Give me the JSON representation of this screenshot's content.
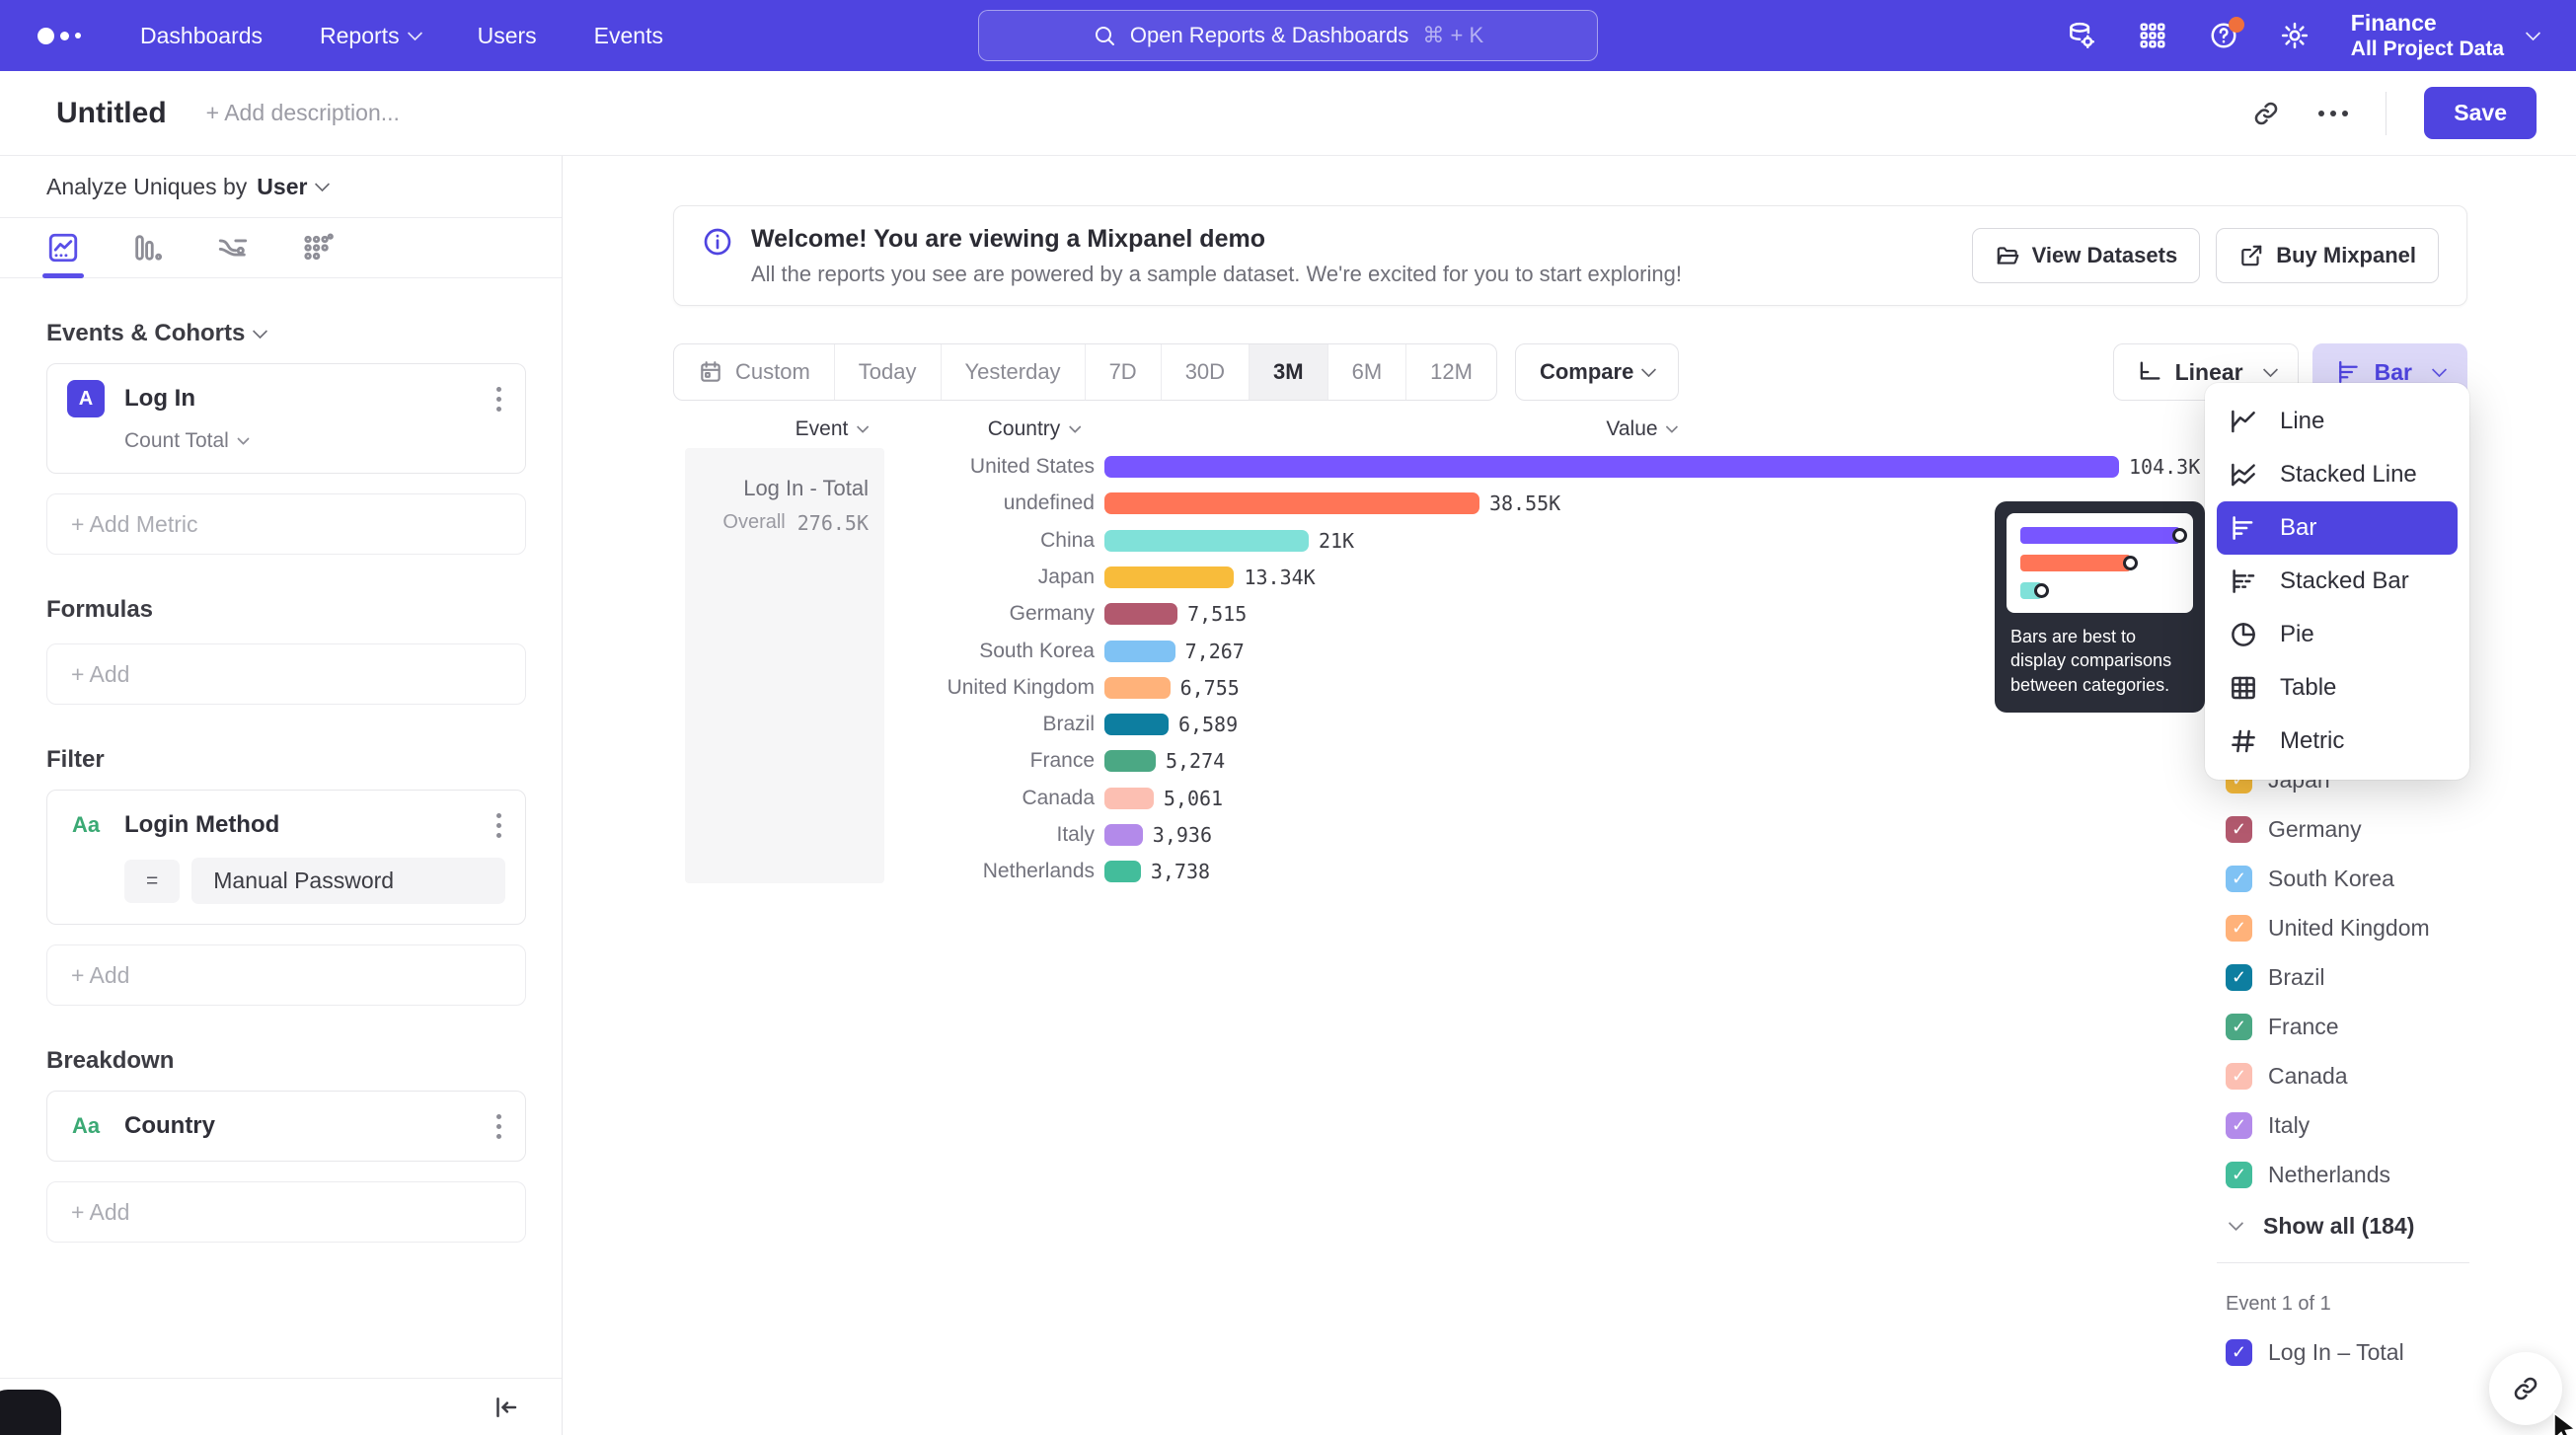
{
  "app": {
    "accent": "#4F44E0"
  },
  "nav": {
    "items": [
      {
        "label": "Dashboards",
        "chevron": false
      },
      {
        "label": "Reports",
        "chevron": true
      },
      {
        "label": "Users",
        "chevron": false
      },
      {
        "label": "Events",
        "chevron": false
      }
    ],
    "search_placeholder": "Open Reports & Dashboards",
    "search_shortcut": "⌘ + K",
    "project_name": "Finance",
    "project_subtitle": "All Project Data"
  },
  "header": {
    "title": "Untitled",
    "description_placeholder": "+ Add description...",
    "save_label": "Save"
  },
  "sidebar": {
    "analyze_label": "Analyze Uniques by",
    "analyze_value": "User",
    "events_heading": "Events & Cohorts",
    "metric": {
      "badge": "A",
      "name": "Log In",
      "aggregation": "Count Total"
    },
    "add_metric_label": "+ Add Metric",
    "formulas_heading": "Formulas",
    "formulas_add_label": "+ Add",
    "filter_heading": "Filter",
    "filter": {
      "icon": "Aa",
      "name": "Login Method",
      "operator": "=",
      "value": "Manual Password"
    },
    "filter_add_label": "+ Add",
    "breakdown_heading": "Breakdown",
    "breakdown": {
      "icon": "Aa",
      "name": "Country"
    },
    "breakdown_add_label": "+ Add"
  },
  "banner": {
    "title": "Welcome! You are viewing a Mixpanel demo",
    "subtitle": "All the reports you see are powered by a sample dataset. We're excited for you to start exploring!",
    "view_datasets_label": "View Datasets",
    "buy_mixpanel_label": "Buy Mixpanel"
  },
  "controls": {
    "date_ranges": [
      "Custom",
      "Today",
      "Yesterday",
      "7D",
      "30D",
      "3M",
      "6M",
      "12M"
    ],
    "active_range": "3M",
    "compare_label": "Compare",
    "scale_label": "Linear",
    "chart_type_label": "Bar"
  },
  "chart": {
    "columns": {
      "event": "Event",
      "country": "Country",
      "value": "Value"
    },
    "summary": {
      "title": "Log In - Total",
      "overall_label": "Overall",
      "overall_value": "276.5K"
    }
  },
  "chart_data": {
    "type": "bar",
    "orientation": "horizontal",
    "series_name": "Log In - Total",
    "categories": [
      "United States",
      "undefined",
      "China",
      "Japan",
      "Germany",
      "South Korea",
      "United Kingdom",
      "Brazil",
      "France",
      "Canada",
      "Italy",
      "Netherlands"
    ],
    "values": [
      104300,
      38550,
      21000,
      13340,
      7515,
      7267,
      6755,
      6589,
      5274,
      5061,
      3936,
      3738
    ],
    "value_labels": [
      "104.3K",
      "38.55K",
      "21K",
      "13.34K",
      "7,515",
      "7,267",
      "6,755",
      "6,589",
      "5,274",
      "5,061",
      "3,936",
      "3,738"
    ],
    "colors": [
      "#7856FF",
      "#FF7557",
      "#80E1D9",
      "#F8BC3B",
      "#B2596E",
      "#7FC2F4",
      "#FFB27A",
      "#0D7EA0",
      "#4BA884",
      "#FCBFB2",
      "#B38AEA",
      "#43BD9B"
    ],
    "pattern_indices": [
      11
    ],
    "xlim": [
      0,
      104300
    ],
    "grid": false,
    "legend_position": "right"
  },
  "chart_type_menu": {
    "selected": "Bar",
    "items": [
      {
        "label": "Line",
        "icon": "line-chart-icon"
      },
      {
        "label": "Stacked Line",
        "icon": "stacked-line-chart-icon"
      },
      {
        "label": "Bar",
        "icon": "bar-chart-icon"
      },
      {
        "label": "Stacked Bar",
        "icon": "stacked-bar-chart-icon"
      },
      {
        "label": "Pie",
        "icon": "pie-chart-icon"
      },
      {
        "label": "Table",
        "icon": "table-icon"
      },
      {
        "label": "Metric",
        "icon": "metric-icon"
      }
    ],
    "tooltip": "Bars are best to display comparisons between categories."
  },
  "legend": {
    "show_all_label": "Show all (184)",
    "event_section_label": "Event 1 of 1",
    "event_item": {
      "label": "Log In – Total",
      "checked": true,
      "color": "#4F44E0"
    }
  }
}
